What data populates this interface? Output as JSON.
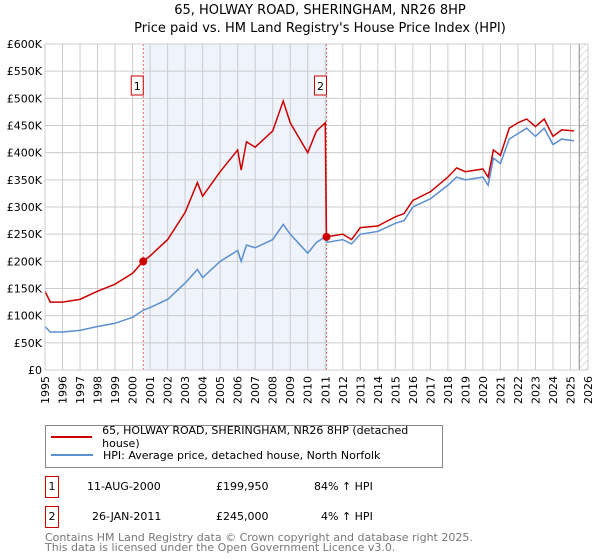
{
  "chart_data": {
    "type": "line",
    "title": "65, HOLWAY ROAD, SHERINGHAM, NR26 8HP",
    "subtitle": "Price paid vs. HM Land Registry's House Price Index (HPI)",
    "xlim": [
      1995,
      2026
    ],
    "ylim": [
      0,
      600000
    ],
    "x_ticks": [
      "1995",
      "1996",
      "1997",
      "1998",
      "1999",
      "2000",
      "2001",
      "2002",
      "2003",
      "2004",
      "2005",
      "2006",
      "2007",
      "2008",
      "2009",
      "2010",
      "2011",
      "2012",
      "2013",
      "2014",
      "2015",
      "2016",
      "2017",
      "2018",
      "2019",
      "2020",
      "2021",
      "2022",
      "2023",
      "2024",
      "2025",
      "2026"
    ],
    "y_ticks": [
      {
        "v": 0,
        "label": "£0"
      },
      {
        "v": 50000,
        "label": "£50K"
      },
      {
        "v": 100000,
        "label": "£100K"
      },
      {
        "v": 150000,
        "label": "£150K"
      },
      {
        "v": 200000,
        "label": "£200K"
      },
      {
        "v": 250000,
        "label": "£250K"
      },
      {
        "v": 300000,
        "label": "£300K"
      },
      {
        "v": 350000,
        "label": "£350K"
      },
      {
        "v": 400000,
        "label": "£400K"
      },
      {
        "v": 450000,
        "label": "£450K"
      },
      {
        "v": 500000,
        "label": "£500K"
      },
      {
        "v": 550000,
        "label": "£550K"
      },
      {
        "v": 600000,
        "label": "£600K"
      }
    ],
    "grid": true,
    "series": [
      {
        "name": "65, HOLWAY ROAD, SHERINGHAM, NR26 8HP (detached house)",
        "color": "#cc0000",
        "x": [
          1995,
          1995.3,
          1996,
          1997,
          1998,
          1999,
          2000,
          2000.6,
          2001,
          2002,
          2003,
          2003.7,
          2004,
          2005,
          2006,
          2006.2,
          2006.5,
          2007,
          2008,
          2008.6,
          2009,
          2010,
          2010.5,
          2011.0,
          2011.07,
          2012,
          2012.5,
          2013,
          2014,
          2015,
          2015.5,
          2016,
          2017,
          2018,
          2018.5,
          2019,
          2020,
          2020.3,
          2020.6,
          2021,
          2021.5,
          2022,
          2022.5,
          2023,
          2023.5,
          2024,
          2024.5,
          2025.2
        ],
        "y": [
          145000,
          125000,
          125000,
          130000,
          145000,
          158000,
          178000,
          199950,
          210000,
          240000,
          290000,
          345000,
          320000,
          365000,
          405000,
          368000,
          420000,
          410000,
          440000,
          495000,
          455000,
          400000,
          440000,
          455000,
          245000,
          250000,
          240000,
          262000,
          265000,
          282000,
          288000,
          312000,
          328000,
          355000,
          372000,
          365000,
          370000,
          355000,
          405000,
          395000,
          445000,
          455000,
          462000,
          448000,
          462000,
          430000,
          442000,
          440000
        ]
      },
      {
        "name": "HPI: Average price, detached house, North Norfolk",
        "color": "#5b8fd0",
        "x": [
          1995,
          1995.3,
          1996,
          1997,
          1998,
          1999,
          2000,
          2000.6,
          2001,
          2002,
          2003,
          2003.7,
          2004,
          2005,
          2006,
          2006.2,
          2006.5,
          2007,
          2008,
          2008.6,
          2009,
          2010,
          2010.5,
          2011.0,
          2011.1,
          2012,
          2012.5,
          2013,
          2014,
          2015,
          2015.5,
          2016,
          2017,
          2018,
          2018.5,
          2019,
          2020,
          2020.3,
          2020.6,
          2021,
          2021.5,
          2022,
          2022.5,
          2023,
          2023.5,
          2024,
          2024.5,
          2025.2
        ],
        "y": [
          80000,
          70000,
          70000,
          73000,
          80000,
          86000,
          97000,
          110000,
          115000,
          130000,
          160000,
          185000,
          170000,
          200000,
          220000,
          200000,
          230000,
          225000,
          240000,
          268000,
          250000,
          215000,
          235000,
          245000,
          235000,
          240000,
          232000,
          250000,
          255000,
          270000,
          275000,
          300000,
          315000,
          340000,
          355000,
          350000,
          355000,
          340000,
          390000,
          380000,
          425000,
          435000,
          445000,
          430000,
          445000,
          415000,
          425000,
          422000
        ]
      }
    ],
    "sales": [
      {
        "id": "1",
        "x": 2000.61,
        "y": 199950
      },
      {
        "id": "2",
        "x": 2011.07,
        "y": 245000
      }
    ],
    "shaded_range": [
      2000.61,
      2011.07
    ],
    "hatched_from": 2025.5,
    "legend_position": "below"
  },
  "legend": [
    "65, HOLWAY ROAD, SHERINGHAM, NR26 8HP (detached house)",
    "HPI: Average price, detached house, North Norfolk"
  ],
  "transactions": [
    {
      "id": "1",
      "date": "11-AUG-2000",
      "price": "£199,950",
      "hpi": "84% ↑ HPI"
    },
    {
      "id": "2",
      "date": "26-JAN-2011",
      "price": "£245,000",
      "hpi": "4% ↑ HPI"
    }
  ],
  "footer": [
    "Contains HM Land Registry data © Crown copyright and database right 2025.",
    "This data is licensed under the Open Government Licence v3.0."
  ]
}
